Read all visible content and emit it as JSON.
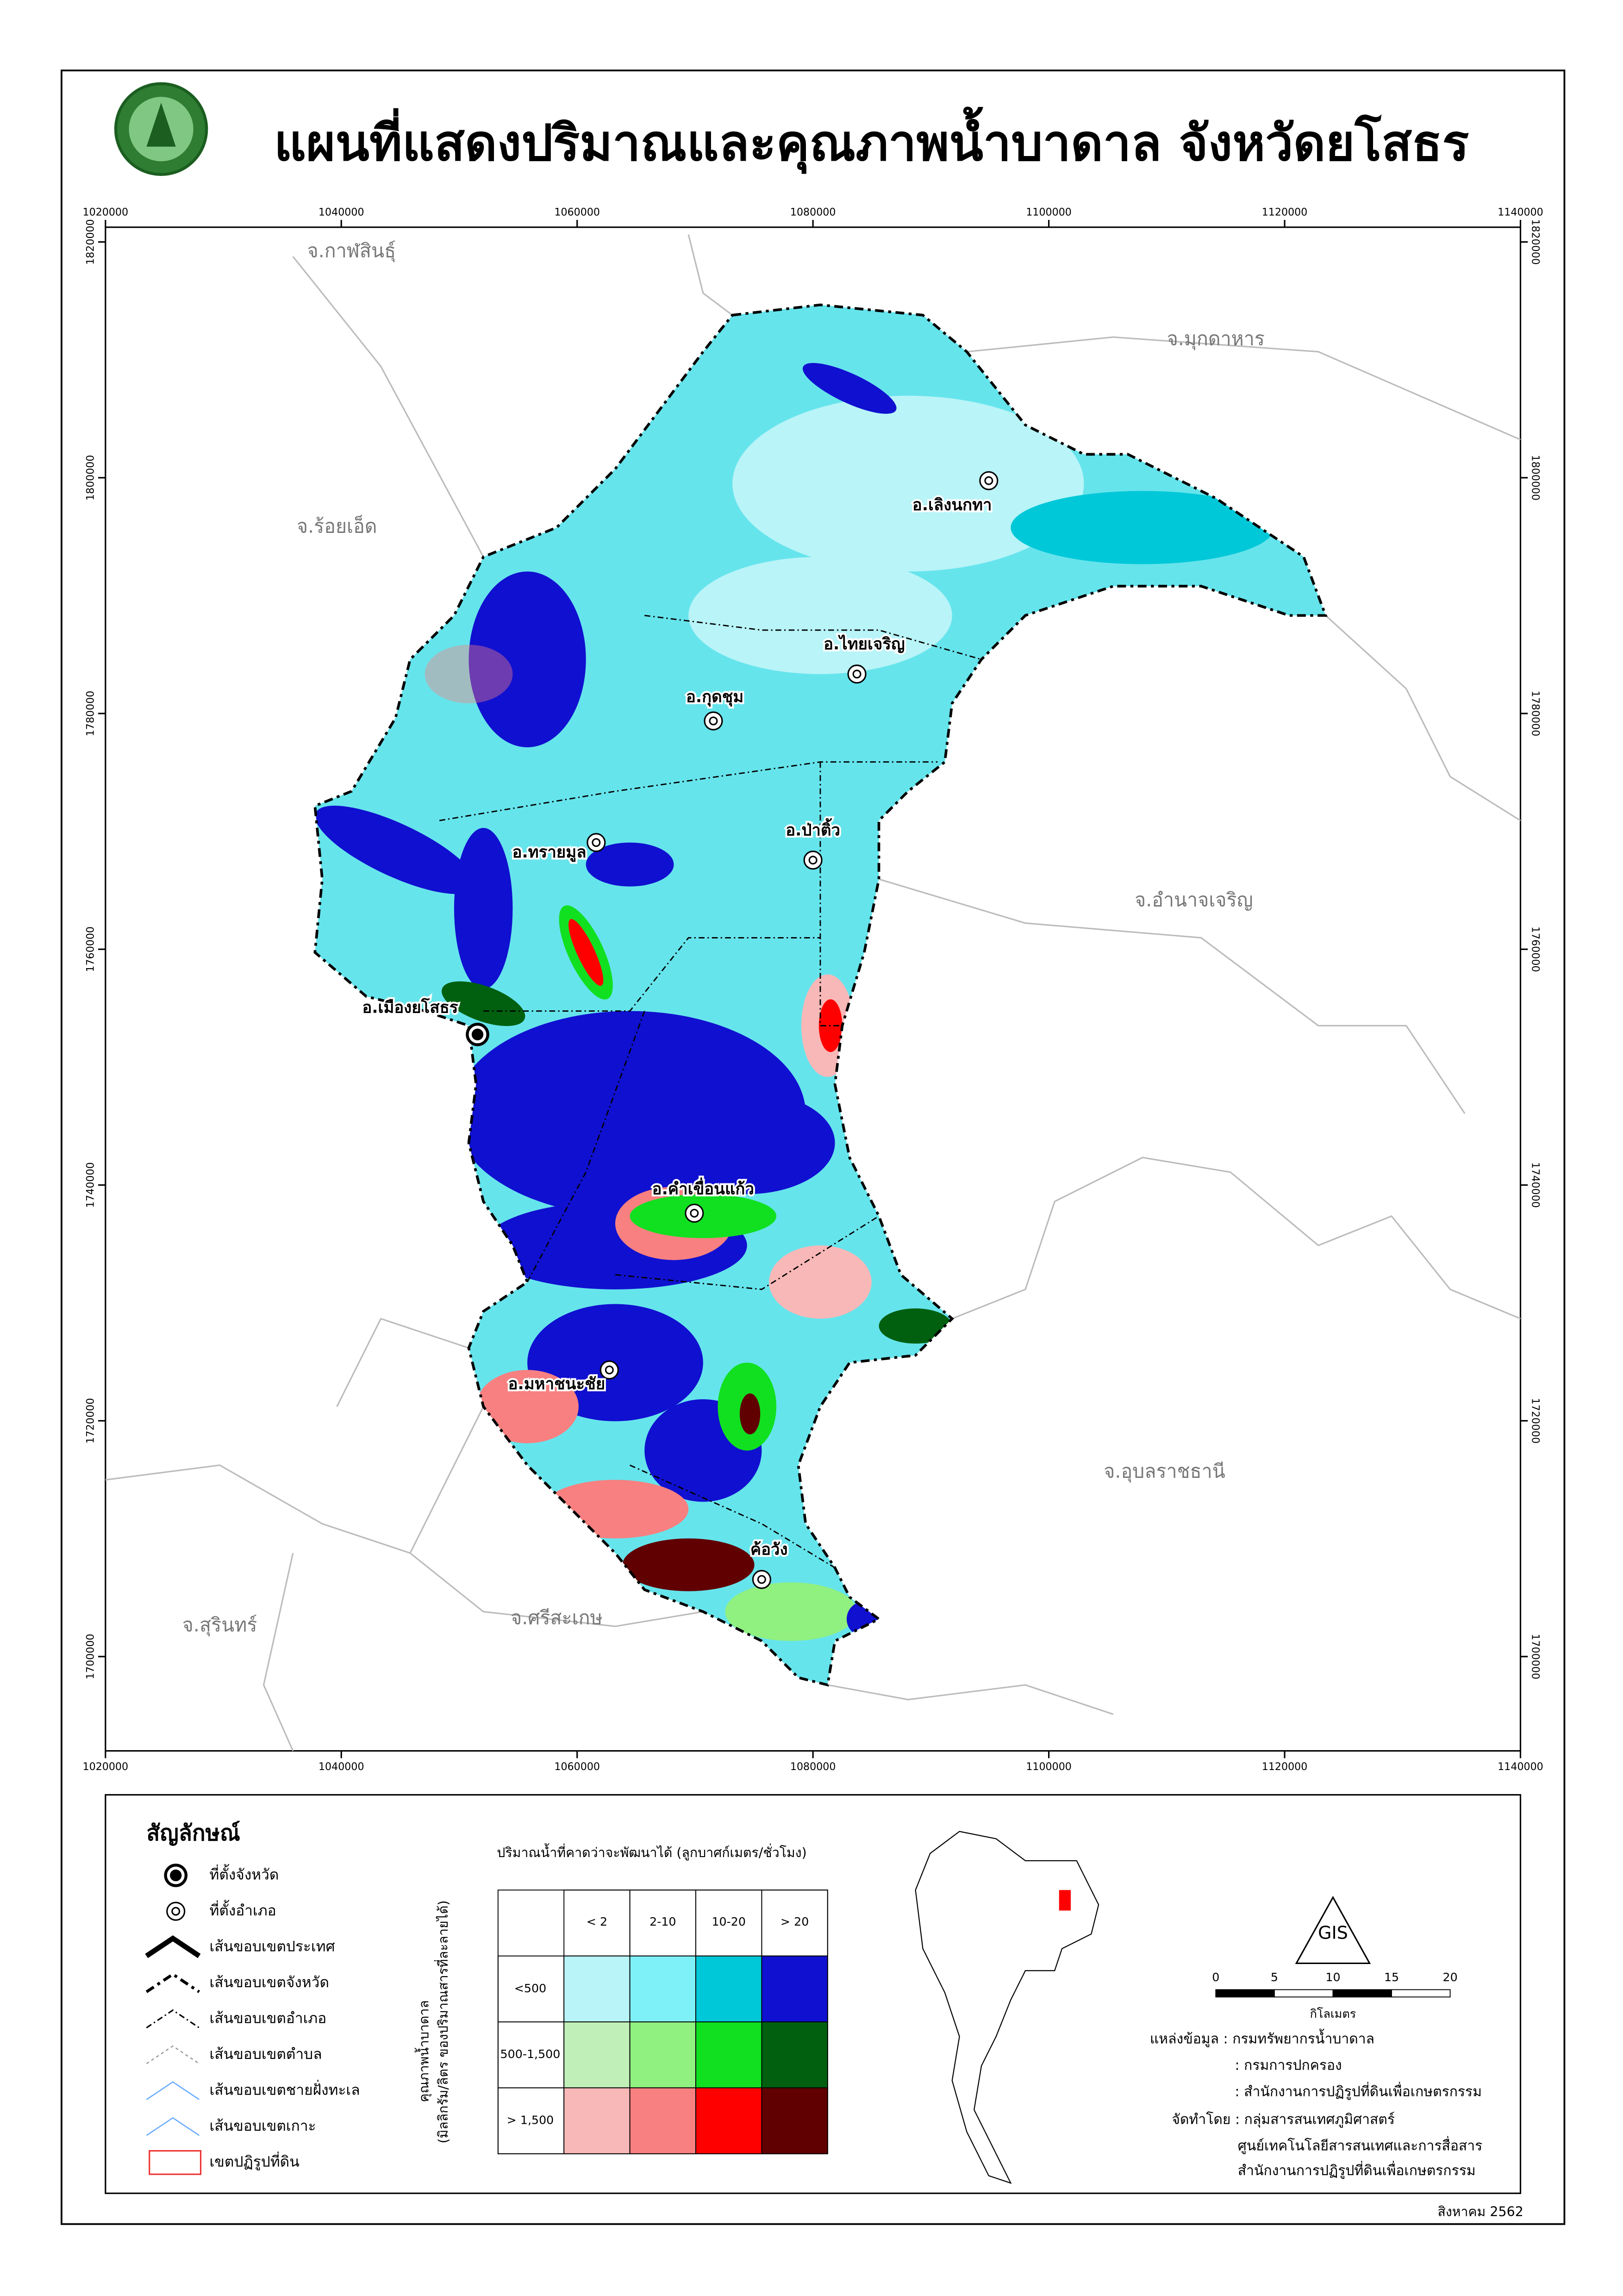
{
  "header": {
    "title": "แผนที่แสดงปริมาณและคุณภาพน้ำบาดาล จังหวัดยโสธร"
  },
  "map": {
    "xlim": [
      1020000,
      1140000
    ],
    "ylim": [
      1692000,
      1821250
    ],
    "xticks": [
      1020000,
      1040000,
      1060000,
      1080000,
      1100000,
      1120000,
      1140000
    ],
    "yticks": [
      1700000,
      1720000,
      1740000,
      1760000,
      1780000,
      1800000,
      1820000
    ],
    "provinces": [
      "จ.กาฬสินธุ์",
      "จ.มุกดาหาร",
      "จ.ร้อยเอ็ด",
      "จ.อำนาจเจริญ",
      "จ.อุบลราชธานี",
      "จ.สุรินทร์",
      "จ.ศรีสะเกษ"
    ],
    "districts": [
      "อ.เลิงนกทา",
      "อ.ไทยเจริญ",
      "อ.กุดชุม",
      "อ.ป่าติ้ว",
      "อ.ทรายมูล",
      "อ.เมืองยโสธร",
      "อ.คำเขื่อนแก้ว",
      "อ.มหาชนะชัย",
      "ค้อวัง"
    ]
  },
  "legend": {
    "title": "สัญลักษณ์",
    "items": [
      "ที่ตั้งจังหวัด",
      "ที่ตั้งอำเภอ",
      "เส้นขอบเขตประเทศ",
      "เส้นขอบเขตจังหวัด",
      "เส้นขอบเขตอำเภอ",
      "เส้นขอบเขตตำบล",
      "เส้นขอบเขตชายฝั่งทะเล",
      "เส้นขอบเขตเกาะ",
      "เขตปฏิรูปที่ดิน"
    ]
  },
  "matrix": {
    "title": "ปริมาณน้ำที่คาดว่าจะพัฒนาได้ (ลูกบาศก์เมตร/ชั่วโมง)",
    "y_title": "คุณภาพน้ำบาดาล",
    "y_subtitle": "(มิลลิกรัม/ลิตร ของปริมาณสารที่ละลายได้)",
    "columns": [
      "< 2",
      "2-10",
      "10-20",
      "> 20"
    ],
    "rows": [
      "<500",
      "500-1,500",
      "> 1,500"
    ],
    "colors": [
      [
        "#b8f4f8",
        "#7ef0f8",
        "#00c8d8",
        "#1010d0"
      ],
      [
        "#c0f0b8",
        "#90f080",
        "#10e020",
        "#006010"
      ],
      [
        "#f8b8b8",
        "#f88080",
        "#ff0000",
        "#600000"
      ]
    ]
  },
  "scale": {
    "ticks": [
      0,
      5,
      10,
      15,
      20
    ],
    "unit": "กิโลเมตร"
  },
  "credits": [
    "แหล่งข้อมูล : กรมทรัพยากรน้ำบาดาล",
    ": กรมการปกครอง",
    ": สำนักงานการปฏิรูปที่ดินเพื่อเกษตรกรรม",
    "จัดทำโดย : กลุ่มสารสนเทศภูมิศาสตร์",
    "ศูนย์เทคโนโลยีสารสนเทศและการสื่อสาร",
    "สำนักงานการปฏิรูปที่ดินเพื่อเกษตรกรรม"
  ],
  "date": "สิงหาคม 2562"
}
